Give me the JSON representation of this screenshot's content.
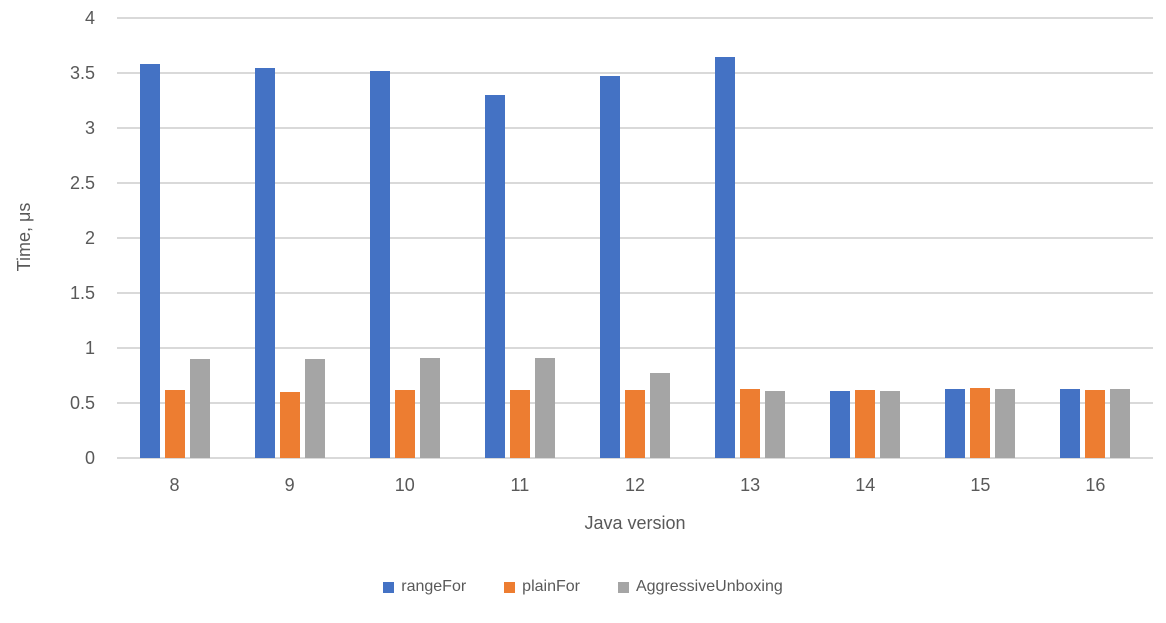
{
  "chart_data": {
    "type": "bar",
    "title": "",
    "xlabel": "Java version",
    "ylabel": "Time, μs",
    "categories": [
      "8",
      "9",
      "10",
      "11",
      "12",
      "13",
      "14",
      "15",
      "16"
    ],
    "series": [
      {
        "name": "rangeFor",
        "color": "#4472C4",
        "values": [
          3.58,
          3.55,
          3.52,
          3.3,
          3.47,
          3.65,
          0.61,
          0.63,
          0.63
        ]
      },
      {
        "name": "plainFor",
        "color": "#ED7D31",
        "values": [
          0.62,
          0.6,
          0.62,
          0.62,
          0.62,
          0.63,
          0.62,
          0.64,
          0.62
        ]
      },
      {
        "name": "AggressiveUnboxing",
        "color": "#A5A5A5",
        "values": [
          0.9,
          0.9,
          0.91,
          0.91,
          0.77,
          0.61,
          0.61,
          0.63,
          0.63
        ]
      }
    ],
    "ylim": [
      0,
      4
    ],
    "ytick_step": 0.5,
    "yticks": [
      "0",
      "0.5",
      "1",
      "1.5",
      "2",
      "2.5",
      "3",
      "3.5",
      "4"
    ],
    "grid": true,
    "grid_color": "#D9D9D9",
    "text_color": "#595959",
    "legend_position": "bottom",
    "legend_labels": [
      "rangeFor",
      "plainFor",
      "AggressiveUnboxing"
    ]
  }
}
